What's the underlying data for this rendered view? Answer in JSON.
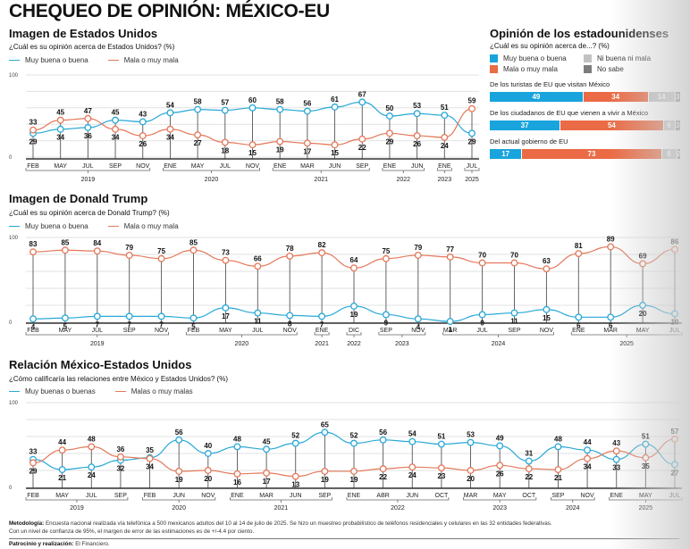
{
  "header": {
    "title": "CHEQUEO DE OPINIÓN: MÉXICO-EU"
  },
  "colors": {
    "blue": "#29a8d6",
    "red": "#e3785a",
    "light_gray": "#c2c2c2",
    "dark_gray": "#7d7d7d",
    "bar_blue": "#19a4dd",
    "bar_red": "#ea6b45"
  },
  "chart_data": [
    {
      "id": "imagen-eu",
      "type": "line",
      "title": "Imagen de Estados Unidos",
      "subtitle": "¿Cuál es su opinión acerca de Estados Unidos? (%)",
      "ylim": [
        0,
        100
      ],
      "yticks": [
        "0",
        "100"
      ],
      "grid": true,
      "legend": "top-left",
      "x": [
        "FEB 2019",
        "MAY 2019",
        "JUL 2019",
        "SEP 2019",
        "NOV 2019",
        "ENE 2020",
        "MAY 2020",
        "JUL 2020",
        "NOV 2020",
        "ENE 2021",
        "MAR 2021",
        "JUN 2021",
        "SEP 2021",
        "ENE 2022",
        "JUN 2022",
        "ENE 2023",
        "JUL 2025"
      ],
      "tick_labels": [
        "FEB",
        "MAY",
        "JUL",
        "SEP",
        "NOV",
        "ENE",
        "MAY",
        "JUL",
        "NOV",
        "ENE",
        "MAR",
        "JUN",
        "SEP",
        "ENE",
        "JUN",
        "ENE",
        "JUL"
      ],
      "year_groups": [
        {
          "label": "2019",
          "from": 0,
          "to": 4
        },
        {
          "label": "2020",
          "from": 5,
          "to": 8
        },
        {
          "label": "2021",
          "from": 9,
          "to": 12
        },
        {
          "label": "2022",
          "from": 13,
          "to": 14
        },
        {
          "label": "2023",
          "from": 15,
          "to": 15
        },
        {
          "label": "2025",
          "from": 16,
          "to": 16
        }
      ],
      "series": [
        {
          "name": "Muy buena o buena",
          "color": "#29a8d6",
          "values": [
            29,
            34,
            36,
            45,
            43,
            54,
            58,
            57,
            60,
            58,
            56,
            61,
            67,
            50,
            53,
            51,
            29
          ]
        },
        {
          "name": "Mala o muy mala",
          "color": "#e3785a",
          "values": [
            33,
            45,
            47,
            34,
            26,
            34,
            27,
            18,
            15,
            19,
            17,
            15,
            22,
            29,
            26,
            24,
            59
          ]
        }
      ]
    },
    {
      "id": "imagen-trump",
      "type": "line",
      "title": "Imagen de Donald Trump",
      "subtitle": "¿Cuál es su opinión acerca de Donald Trump? (%)",
      "ylim": [
        0,
        100
      ],
      "yticks": [
        "0",
        "100"
      ],
      "grid": true,
      "legend": "top-left",
      "x": [
        "FEB 2019",
        "MAY 2019",
        "JUL 2019",
        "SEP 2019",
        "NOV 2019",
        "FEB 2020",
        "MAY 2020",
        "JUL 2020",
        "NOV 2020",
        "ENE 2021",
        "DIC 2022",
        "SEP 2023",
        "NOV 2023",
        "MAR 2024",
        "JUL 2024",
        "SEP 2024",
        "NOV 2024",
        "ENE 2025",
        "MAR 2025",
        "MAY 2025",
        "JUL 2025"
      ],
      "tick_labels": [
        "FEB",
        "MAY",
        "JUL",
        "SEP",
        "NOV",
        "FEB",
        "MAY",
        "JUL",
        "NOV",
        "ENE",
        "DIC",
        "SEP",
        "NOV",
        "MAR",
        "JUL",
        "SEP",
        "NOV",
        "ENE",
        "MAR",
        "MAY",
        "JUL"
      ],
      "year_groups": [
        {
          "label": "2019",
          "from": 0,
          "to": 4
        },
        {
          "label": "2020",
          "from": 5,
          "to": 8
        },
        {
          "label": "2021",
          "from": 9,
          "to": 9
        },
        {
          "label": "2022",
          "from": 10,
          "to": 10
        },
        {
          "label": "2023",
          "from": 11,
          "to": 12
        },
        {
          "label": "2024",
          "from": 13,
          "to": 16
        },
        {
          "label": "2025",
          "from": 17,
          "to": 20
        }
      ],
      "series": [
        {
          "name": "Muy buena o buena",
          "color": "#29a8d6",
          "values": [
            4,
            5,
            7,
            7,
            7,
            5,
            17,
            11,
            8,
            7,
            19,
            9,
            4,
            1,
            9,
            11,
            15,
            6,
            6,
            20,
            10
          ]
        },
        {
          "name": "Mala o muy mala",
          "color": "#e3785a",
          "values": [
            83,
            85,
            84,
            79,
            75,
            85,
            73,
            66,
            78,
            82,
            64,
            75,
            79,
            77,
            70,
            70,
            63,
            81,
            89,
            69,
            86
          ]
        }
      ]
    },
    {
      "id": "relacion-mx-eu",
      "type": "line",
      "title": "Relación México-Estados Unidos",
      "subtitle": "¿Cómo calificaría las relaciones entre México y Estados Unidos? (%)",
      "ylim": [
        0,
        100
      ],
      "yticks": [
        "0",
        "100"
      ],
      "grid": true,
      "legend": "top-left",
      "x": [
        "FEB 2019",
        "MAY 2019",
        "JUL 2019",
        "SEP 2019",
        "FEB 2020",
        "JUN 2020",
        "NOV 2020",
        "ENE 2021",
        "MAR 2021",
        "JUN 2021",
        "SEP 2021",
        "ENE 2022",
        "ABR 2022",
        "JUN 2022",
        "OCT 2022",
        "MAR 2023",
        "MAY 2023",
        "OCT 2023",
        "SEP 2024",
        "NOV 2024",
        "ENE 2025",
        "MAY 2025",
        "JUL 2025"
      ],
      "tick_labels": [
        "FEB",
        "MAY",
        "JUL",
        "SEP",
        "FEB",
        "JUN",
        "NOV",
        "ENE",
        "MAR",
        "JUN",
        "SEP",
        "ENE",
        "ABR",
        "JUN",
        "OCT",
        "MAR",
        "MAY",
        "OCT",
        "SEP",
        "NOV",
        "ENE",
        "MAY",
        "JUL"
      ],
      "year_groups": [
        {
          "label": "2019",
          "from": 0,
          "to": 3
        },
        {
          "label": "2020",
          "from": 4,
          "to": 6
        },
        {
          "label": "2021",
          "from": 7,
          "to": 10
        },
        {
          "label": "2022",
          "from": 11,
          "to": 14
        },
        {
          "label": "2023",
          "from": 15,
          "to": 17
        },
        {
          "label": "2024",
          "from": 18,
          "to": 19
        },
        {
          "label": "2025",
          "from": 20,
          "to": 22
        }
      ],
      "series": [
        {
          "name": "Muy buenas o buenas",
          "color": "#29a8d6",
          "values": [
            33,
            21,
            24,
            32,
            35,
            56,
            40,
            48,
            45,
            52,
            65,
            52,
            56,
            54,
            51,
            53,
            49,
            31,
            48,
            44,
            33,
            51,
            27
          ]
        },
        {
          "name": "Malas o muy malas",
          "color": "#e3785a",
          "values": [
            29,
            44,
            48,
            36,
            34,
            19,
            20,
            16,
            17,
            13,
            19,
            19,
            22,
            24,
            23,
            20,
            26,
            22,
            21,
            34,
            43,
            35,
            57
          ]
        }
      ]
    },
    {
      "id": "opinion-estadounidenses",
      "type": "bar",
      "orientation": "horizontal-stacked",
      "title": "Opinión de los estadounidenses",
      "subtitle": "¿Cuál es su opinión acerca de...? (%)",
      "legend": "top",
      "series_names": [
        "Muy buena o buena",
        "Mala o muy mala",
        "Ni buena ni mala",
        "No sabe"
      ],
      "series_colors": [
        "#19a4dd",
        "#ea6b45",
        "#c2c2c2",
        "#7d7d7d"
      ],
      "categories": [
        "De los turistas de EU que visitan México",
        "De los ciudadanos de EU que vienen a vivir a México",
        "Del actual gobierno de EU"
      ],
      "values": [
        [
          49,
          34,
          14,
          3
        ],
        [
          37,
          54,
          6,
          3
        ],
        [
          17,
          73,
          8,
          2
        ]
      ]
    }
  ],
  "footer": {
    "method_label": "Metodología:",
    "method_text": "Encuesta nacional realizada vía telefónica a 500 mexicanos adultos del 10 al 14 de julio de 2025. Se hizo un muestreo probabilístico de teléfonos residenciales y celulares en las 32 entidades federativas.",
    "method_text2": "Con un nivel de confianza de 95%, el margen de error de las estimaciones es de +/-4.4 por ciento.",
    "sponsor_label": "Patrocinio y realización:",
    "sponsor_text": "El Financiero."
  }
}
